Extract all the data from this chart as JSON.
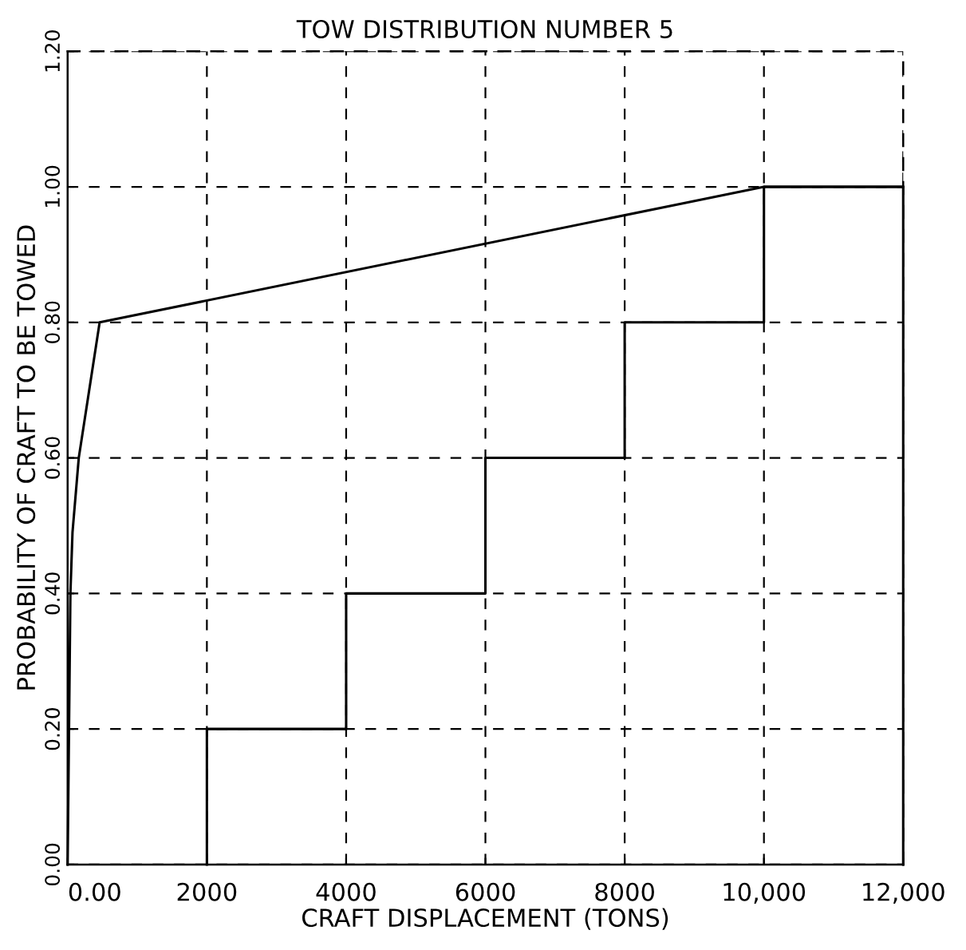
{
  "chart_data": {
    "type": "line",
    "title": "TOW DISTRIBUTION NUMBER 5",
    "xlabel": "CRAFT DISPLACEMENT (TONS)",
    "ylabel": "PROBABILITY OF CRAFT TO BE TOWED",
    "series": [
      {
        "color": "#000000",
        "x": [
          0,
          40,
          70,
          160,
          460,
          10000,
          12000
        ],
        "values": [
          0,
          0.4,
          0.49,
          0.6,
          0.8,
          1.0,
          1.0
        ]
      },
      {
        "color": "#000000",
        "x": [
          2000,
          2000,
          4000,
          4000,
          6000,
          6000,
          8000,
          8000,
          10000,
          10000,
          12000,
          12000
        ],
        "values": [
          0,
          0.2,
          0.2,
          0.4,
          0.4,
          0.6,
          0.6,
          0.8,
          0.8,
          1.0,
          1.0,
          0
        ]
      }
    ],
    "xlim": [
      0,
      12000
    ],
    "ylim": [
      0,
      1.2
    ],
    "xticks": [
      {
        "value": 0,
        "label": "0.00"
      },
      2000,
      4000,
      6000,
      8000,
      {
        "value": 10000,
        "label": "10,000"
      },
      {
        "value": 12000,
        "label": "12,000"
      }
    ],
    "yticks": [
      {
        "value": 0,
        "label": "0.00"
      },
      {
        "value": 0.2,
        "label": "0.20"
      },
      {
        "value": 0.4,
        "label": "0.40"
      },
      {
        "value": 0.6,
        "label": "0.60"
      },
      {
        "value": 0.8,
        "label": "0.80"
      },
      {
        "value": 1.0,
        "label": "1.00"
      },
      {
        "value": 1.2,
        "label": "1.20"
      }
    ],
    "grid": true,
    "marker": "none",
    "line_style": "solid"
  }
}
